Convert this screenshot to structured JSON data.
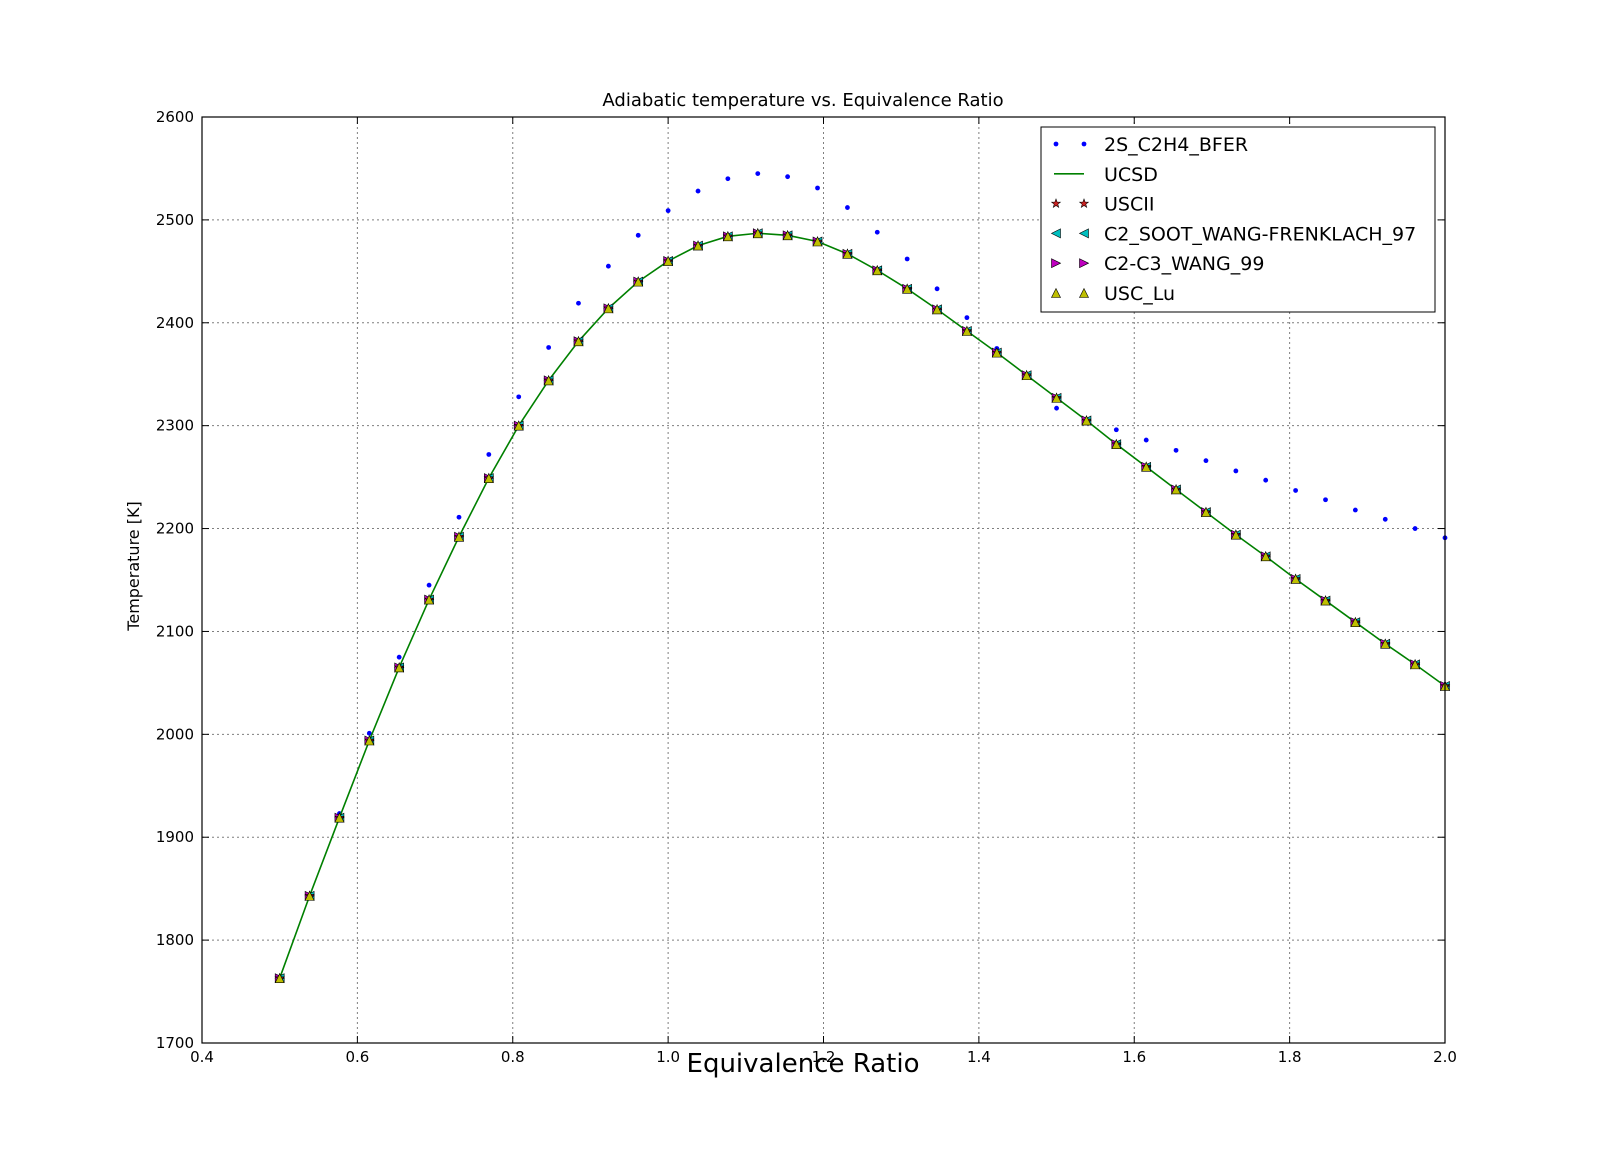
{
  "chart_data": {
    "type": "line",
    "title": "Adiabatic temperature vs. Equivalence Ratio",
    "xlabel": "Equivalence Ratio",
    "ylabel": "Temperature [K]",
    "xlim": [
      0.4,
      2.0
    ],
    "ylim": [
      1700,
      2600
    ],
    "xticks": [
      "0.4",
      "0.6",
      "0.8",
      "1.0",
      "1.2",
      "1.4",
      "1.6",
      "1.8",
      "2.0"
    ],
    "yticks": [
      "1700",
      "1800",
      "1900",
      "2000",
      "2100",
      "2200",
      "2300",
      "2400",
      "2500",
      "2600"
    ],
    "grid": true,
    "legend_position": "top-right",
    "x": [
      0.5,
      0.5385,
      0.5769,
      0.6154,
      0.6538,
      0.6923,
      0.7308,
      0.7692,
      0.8077,
      0.8462,
      0.8846,
      0.9231,
      0.9615,
      1.0,
      1.0385,
      1.0769,
      1.1154,
      1.1538,
      1.1923,
      1.2308,
      1.2692,
      1.3077,
      1.3462,
      1.3846,
      1.4231,
      1.4615,
      1.5,
      1.5385,
      1.5769,
      1.6154,
      1.6538,
      1.6923,
      1.7308,
      1.7692,
      1.8077,
      1.8462,
      1.8846,
      1.9231,
      1.9615,
      2.0
    ],
    "series": [
      {
        "name": "2S_C2H4_BFER",
        "marker": "dot",
        "color": "#0000ff",
        "values": [
          1763,
          1843,
          1923,
          2001,
          2075,
          2145,
          2211,
          2272,
          2328,
          2376,
          2419,
          2455,
          2485,
          2509,
          2528,
          2540,
          2545,
          2542,
          2531,
          2512,
          2488,
          2462,
          2433,
          2405,
          2375,
          2347,
          2317,
          2306,
          2296,
          2286,
          2276,
          2266,
          2256,
          2247,
          2237,
          2228,
          2218,
          2209,
          2200,
          2191
        ]
      },
      {
        "name": "UCSD",
        "marker": "line",
        "color": "#008000",
        "values": [
          1763,
          1843,
          1919,
          1994,
          2065,
          2131,
          2192,
          2249,
          2300,
          2344,
          2382,
          2414,
          2440,
          2460,
          2475,
          2484,
          2487,
          2485,
          2479,
          2467,
          2451,
          2433,
          2413,
          2392,
          2371,
          2349,
          2327,
          2305,
          2282,
          2260,
          2238,
          2216,
          2194,
          2173,
          2151,
          2130,
          2109,
          2088,
          2068,
          2047
        ]
      },
      {
        "name": "USCII",
        "marker": "star",
        "color": "#cc2222",
        "values": [
          1763,
          1843,
          1919,
          1994,
          2065,
          2131,
          2192,
          2249,
          2300,
          2344,
          2382,
          2414,
          2440,
          2460,
          2475,
          2484,
          2487,
          2485,
          2479,
          2467,
          2451,
          2433,
          2413,
          2392,
          2371,
          2349,
          2327,
          2305,
          2282,
          2260,
          2238,
          2216,
          2194,
          2173,
          2151,
          2130,
          2109,
          2088,
          2068,
          2047
        ]
      },
      {
        "name": "C2_SOOT_WANG-FRENKLACH_97",
        "marker": "triangle-left",
        "color": "#00bfbf",
        "values": [
          1763,
          1843,
          1919,
          1994,
          2065,
          2131,
          2192,
          2249,
          2300,
          2344,
          2382,
          2414,
          2440,
          2460,
          2475,
          2484,
          2487,
          2485,
          2479,
          2467,
          2451,
          2433,
          2413,
          2392,
          2371,
          2349,
          2327,
          2305,
          2282,
          2260,
          2238,
          2216,
          2194,
          2173,
          2151,
          2130,
          2109,
          2088,
          2068,
          2047
        ]
      },
      {
        "name": "C2-C3_WANG_99",
        "marker": "triangle-right",
        "color": "#bf00bf",
        "values": [
          1763,
          1843,
          1919,
          1994,
          2065,
          2131,
          2192,
          2249,
          2300,
          2344,
          2382,
          2414,
          2440,
          2460,
          2475,
          2484,
          2487,
          2485,
          2479,
          2467,
          2451,
          2433,
          2413,
          2392,
          2371,
          2349,
          2327,
          2305,
          2282,
          2260,
          2238,
          2216,
          2194,
          2173,
          2151,
          2130,
          2109,
          2088,
          2068,
          2047
        ]
      },
      {
        "name": "USC_Lu",
        "marker": "triangle-up",
        "color": "#bfbf00",
        "values": [
          1763,
          1843,
          1919,
          1994,
          2065,
          2131,
          2192,
          2249,
          2300,
          2344,
          2382,
          2414,
          2440,
          2460,
          2475,
          2484,
          2487,
          2485,
          2479,
          2467,
          2451,
          2433,
          2413,
          2392,
          2371,
          2349,
          2327,
          2305,
          2282,
          2260,
          2238,
          2216,
          2194,
          2173,
          2151,
          2130,
          2109,
          2088,
          2068,
          2047
        ]
      }
    ]
  }
}
